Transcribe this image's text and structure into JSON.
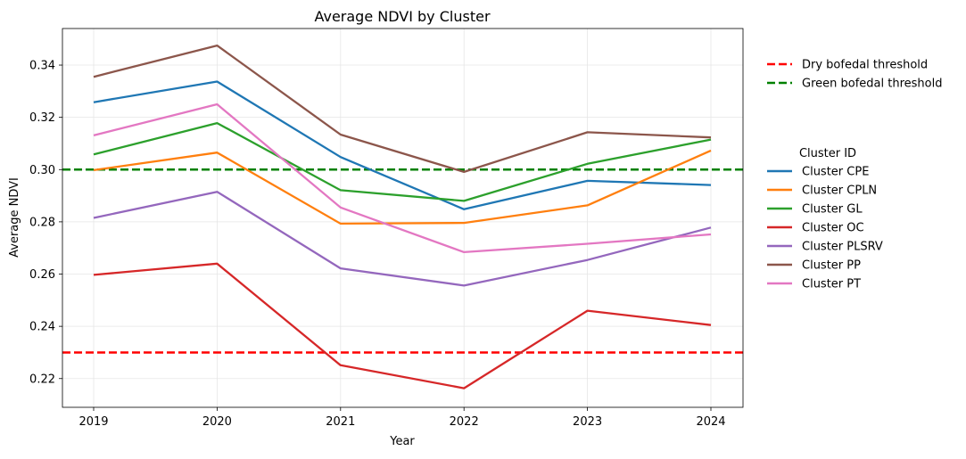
{
  "chart_data": {
    "type": "line",
    "title": "Average NDVI by Cluster",
    "xlabel": "Year",
    "ylabel": "Average NDVI",
    "x": [
      "2019",
      "2020",
      "2021",
      "2022",
      "2023",
      "2024"
    ],
    "ylim": [
      0.209,
      0.354
    ],
    "yticks": [
      "0.22",
      "0.24",
      "0.26",
      "0.28",
      "0.30",
      "0.32",
      "0.34"
    ],
    "grid": true,
    "series": [
      {
        "name": "Cluster CPE",
        "color": "#1f77b4",
        "values": [
          0.3258,
          0.3337,
          0.3048,
          0.2848,
          0.2957,
          0.2941
        ]
      },
      {
        "name": "Cluster CPLN",
        "color": "#ff7f0e",
        "values": [
          0.2998,
          0.3065,
          0.2793,
          0.2796,
          0.2863,
          0.3073
        ]
      },
      {
        "name": "Cluster GL",
        "color": "#2ca02c",
        "values": [
          0.3058,
          0.3178,
          0.2921,
          0.288,
          0.3022,
          0.3115
        ]
      },
      {
        "name": "Cluster OC",
        "color": "#d62728",
        "values": [
          0.2597,
          0.264,
          0.2251,
          0.2163,
          0.246,
          0.2405
        ]
      },
      {
        "name": "Cluster PLSRV",
        "color": "#9467bd",
        "values": [
          0.2815,
          0.2915,
          0.2622,
          0.2556,
          0.2654,
          0.2778
        ]
      },
      {
        "name": "Cluster PP",
        "color": "#8c564b",
        "values": [
          0.3355,
          0.3475,
          0.3134,
          0.2991,
          0.3143,
          0.3123
        ]
      },
      {
        "name": "Cluster PT",
        "color": "#e377c2",
        "values": [
          0.3131,
          0.325,
          0.2855,
          0.2684,
          0.2716,
          0.2752
        ]
      }
    ],
    "thresholds": [
      {
        "name": "Dry bofedal threshold",
        "value": 0.23,
        "color": "#ff0000"
      },
      {
        "name": "Green bofedal threshold",
        "value": 0.3,
        "color": "#008000"
      }
    ],
    "legend": {
      "placement": "outside-right",
      "cluster_title": "Cluster ID"
    }
  }
}
